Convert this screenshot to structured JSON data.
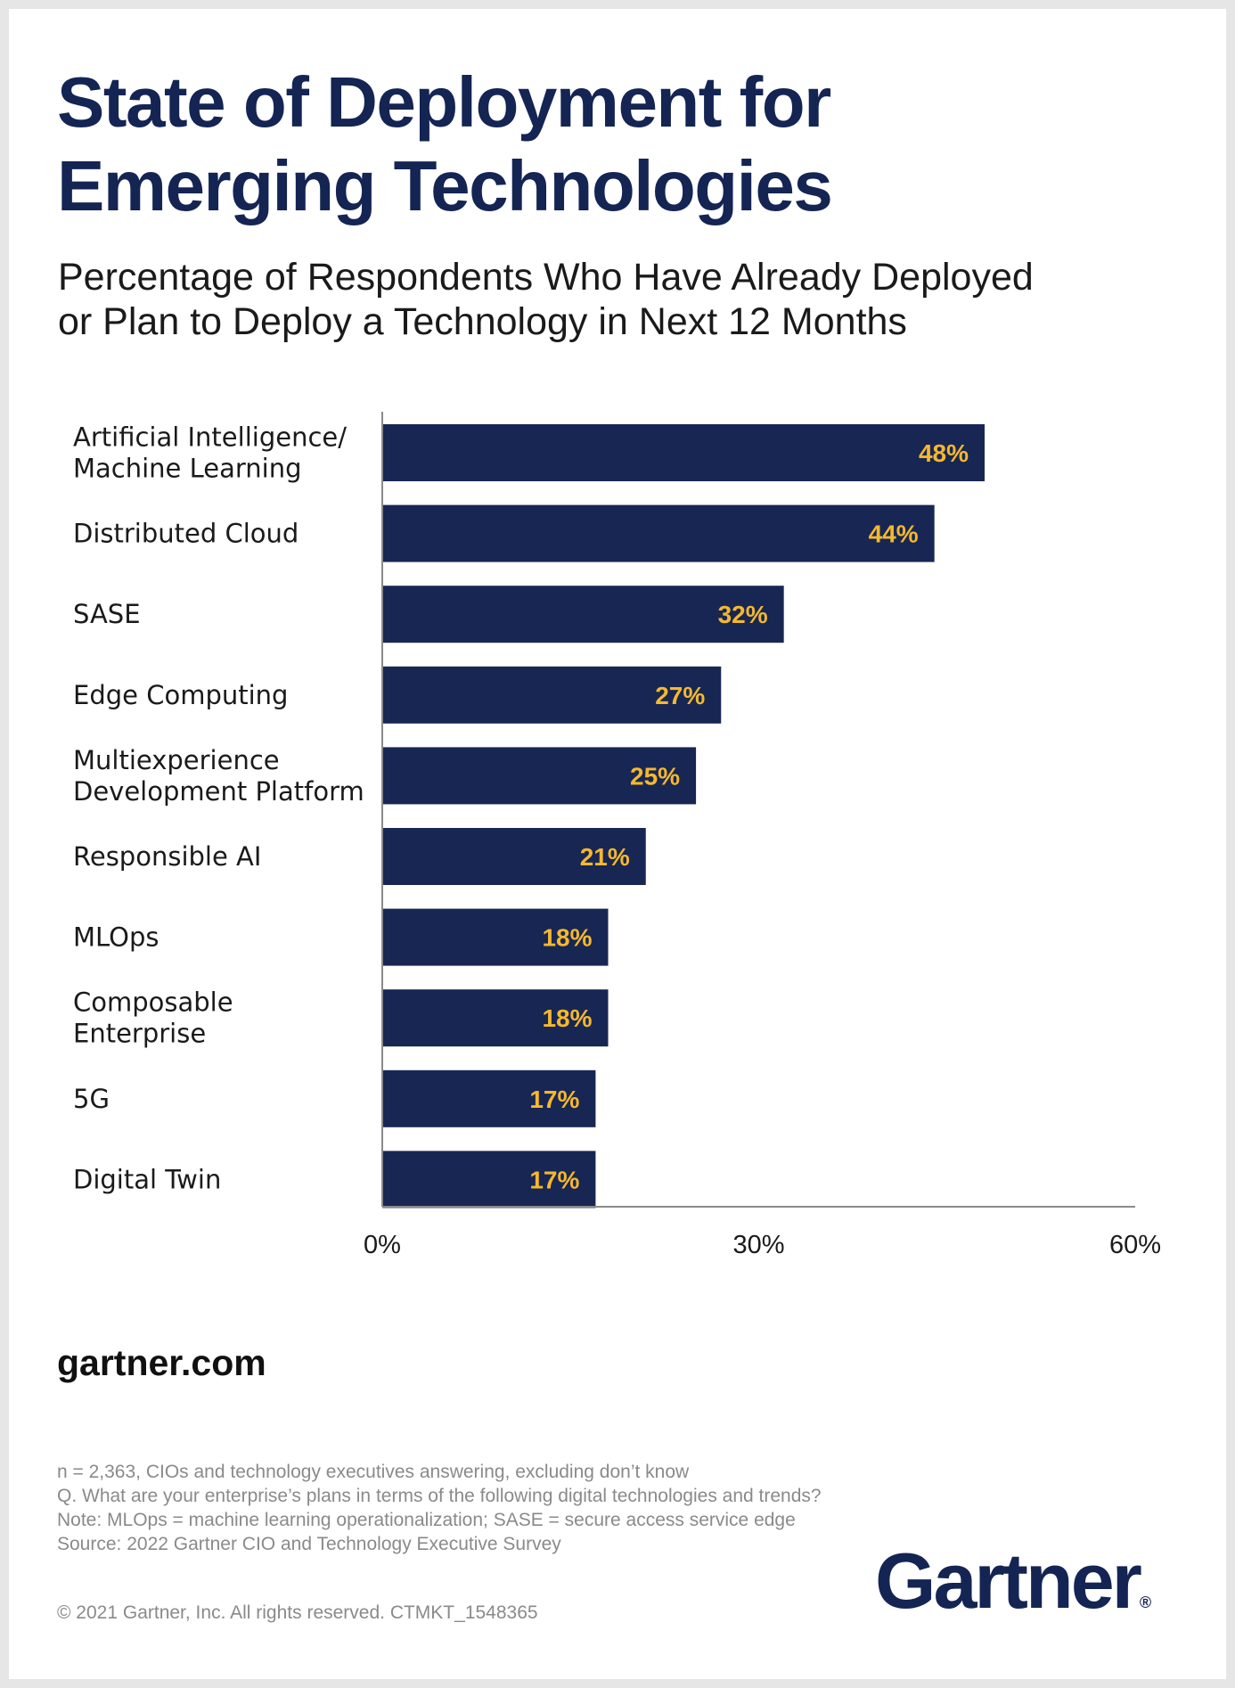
{
  "title_lines": [
    "State of Deployment for",
    "Emerging Technologies"
  ],
  "subtitle_lines": [
    "Percentage of Respondents Who Have Already Deployed",
    "or Plan to Deploy a Technology in Next 12 Months"
  ],
  "chart_data": {
    "type": "bar",
    "orientation": "horizontal",
    "categories": [
      [
        "Artificial Intelligence/",
        "Machine Learning"
      ],
      [
        "Distributed Cloud"
      ],
      [
        "SASE"
      ],
      [
        "Edge Computing"
      ],
      [
        "Multiexperience",
        "Development Platform"
      ],
      [
        "Responsible AI"
      ],
      [
        "MLOps"
      ],
      [
        "Composable",
        "Enterprise"
      ],
      [
        "5G"
      ],
      [
        "Digital Twin"
      ]
    ],
    "values": [
      48,
      44,
      32,
      27,
      25,
      21,
      18,
      18,
      17,
      17
    ],
    "value_labels": [
      "48%",
      "44%",
      "32%",
      "27%",
      "25%",
      "21%",
      "18%",
      "18%",
      "17%",
      "17%"
    ],
    "xlim": [
      0,
      60
    ],
    "xticks": [
      0,
      30,
      60
    ],
    "xtick_labels": [
      "0%",
      "30%",
      "60%"
    ],
    "grid": false,
    "bar_color": "#182653",
    "label_color": "#f5b82e"
  },
  "footer": {
    "site": "gartner.com",
    "notes": [
      "n = 2,363, CIOs and technology executives answering, excluding don’t know",
      "Q. What are your enterprise’s plans in terms of the following digital technologies and trends?",
      "Note: MLOps = machine learning operationalization; SASE = secure access service edge",
      "Source: 2022 Gartner CIO and Technology Executive Survey"
    ],
    "copyright": "© 2021 Gartner, Inc. All rights reserved. CTMKT_1548365",
    "logo_text": "Gartner",
    "logo_mark": "®"
  }
}
